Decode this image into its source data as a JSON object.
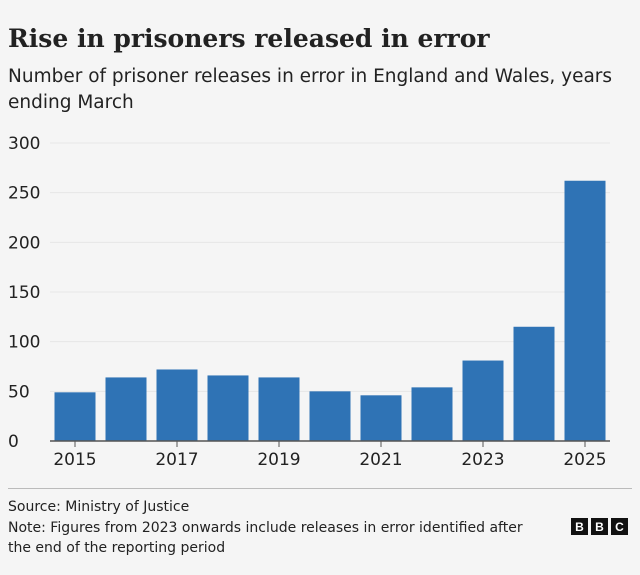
{
  "chart_data": {
    "type": "bar",
    "title": "Rise in prisoners released in error",
    "subtitle": "Number of prisoner releases in error in England and Wales, years ending March",
    "categories": [
      "2015",
      "2016",
      "2017",
      "2018",
      "2019",
      "2020",
      "2021",
      "2022",
      "2023",
      "2024",
      "2025"
    ],
    "values": [
      49,
      64,
      72,
      66,
      64,
      50,
      46,
      54,
      81,
      115,
      262
    ],
    "x_tick_labels": [
      "2015",
      "2017",
      "2019",
      "2021",
      "2023",
      "2025"
    ],
    "y_tick_labels": [
      "0",
      "50",
      "100",
      "150",
      "200",
      "250",
      "300"
    ],
    "ylim": [
      0,
      300
    ],
    "grid": true,
    "bar_color": "#2f73b5",
    "xlabel": "",
    "ylabel": ""
  },
  "footer": {
    "source": "Source: Ministry of Justice",
    "note": "Note: Figures from 2023 onwards include releases in error identified after the end of the reporting period",
    "logo": "BBC"
  }
}
